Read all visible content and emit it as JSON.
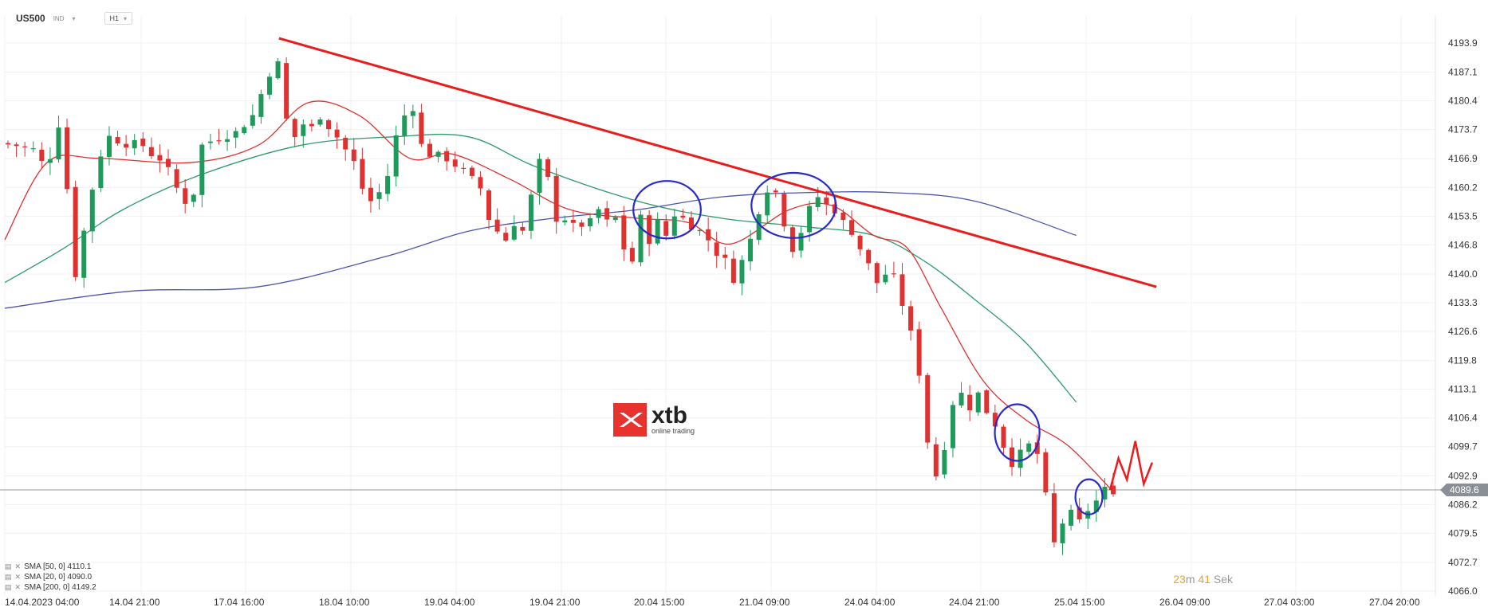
{
  "header": {
    "symbol": "US500",
    "exchange": "IND",
    "timeframe": "H1"
  },
  "logo": {
    "name": "xtb",
    "tagline": "online trading"
  },
  "countdown": {
    "minutes": "23",
    "m_label": "m",
    "seconds": "41",
    "s_label": "Sek"
  },
  "current_price_label": "4089.6",
  "legend": [
    {
      "label": "SMA [50, 0] 4110.1"
    },
    {
      "label": "SMA [20, 0] 4090.0"
    },
    {
      "label": "SMA [200, 0] 4149.2"
    }
  ],
  "colors": {
    "bull": "#1e9a5a",
    "bear": "#e03131",
    "sma20": "#e03131",
    "sma50": "#2e9a6a",
    "sma200": "#4a55a8",
    "trendline": "#ea1c1c",
    "circles": "#2a2acb",
    "price_line": "#9a9a9a",
    "grid": "#eef0f3"
  },
  "chart_data": {
    "type": "candlestick",
    "symbol": "US500",
    "timeframe": "H1",
    "y_ticks": [
      "4193.9",
      "4187.1",
      "4180.4",
      "4173.7",
      "4166.9",
      "4160.2",
      "4153.5",
      "4146.8",
      "4140.0",
      "4133.3",
      "4126.6",
      "4119.8",
      "4113.1",
      "4106.4",
      "4099.7",
      "4092.9",
      "4086.2",
      "4079.5",
      "4072.7",
      "4066.0"
    ],
    "ylim": [
      4066.0,
      4193.9
    ],
    "x_ticks": [
      "14.04.2023  04:00",
      "14.04  21:00",
      "17.04  16:00",
      "18.04  10:00",
      "19.04  04:00",
      "19.04  21:00",
      "20.04  15:00",
      "21.04  09:00",
      "24.04  04:00",
      "24.04  21:00",
      "25.04  15:00",
      "26.04  09:00",
      "27.04  03:00",
      "27.04  20:00"
    ],
    "x_range_bars": [
      0,
      247
    ],
    "current_price": 4089.6,
    "anchors": [
      [
        0,
        4170.5
      ],
      [
        4,
        4170
      ],
      [
        8,
        4169
      ],
      [
        10,
        4166
      ],
      [
        12,
        4167.5
      ],
      [
        14,
        4175
      ],
      [
        16,
        4160
      ],
      [
        18,
        4140
      ],
      [
        20,
        4150
      ],
      [
        22,
        4160
      ],
      [
        24,
        4168
      ],
      [
        26,
        4172
      ],
      [
        30,
        4170.5
      ],
      [
        34,
        4170
      ],
      [
        36,
        4168
      ],
      [
        38,
        4167
      ],
      [
        40,
        4164
      ],
      [
        42,
        4160
      ],
      [
        44,
        4157
      ],
      [
        46,
        4159
      ],
      [
        48,
        4170
      ],
      [
        52,
        4172
      ],
      [
        56,
        4173
      ],
      [
        60,
        4177
      ],
      [
        62,
        4182
      ],
      [
        64,
        4187
      ],
      [
        66,
        4189
      ],
      [
        68,
        4176
      ],
      [
        70,
        4172
      ],
      [
        72,
        4175
      ],
      [
        74,
        4174
      ],
      [
        76,
        4177
      ],
      [
        80,
        4172
      ],
      [
        84,
        4166
      ],
      [
        86,
        4160
      ],
      [
        88,
        4157
      ],
      [
        90,
        4159
      ],
      [
        92,
        4163
      ],
      [
        94,
        4172
      ],
      [
        96,
        4177
      ],
      [
        98,
        4179
      ],
      [
        100,
        4170
      ],
      [
        102,
        4168
      ],
      [
        106,
        4167
      ],
      [
        110,
        4164
      ],
      [
        114,
        4160
      ],
      [
        116,
        4153
      ],
      [
        118,
        4150
      ],
      [
        120,
        4148
      ],
      [
        122,
        4152
      ],
      [
        124,
        4150
      ],
      [
        126,
        4158
      ],
      [
        128,
        4166
      ],
      [
        130,
        4162
      ],
      [
        132,
        4153
      ],
      [
        134,
        4153
      ],
      [
        136,
        4151
      ],
      [
        140,
        4152
      ],
      [
        142,
        4155
      ],
      [
        144,
        4152
      ],
      [
        146,
        4153
      ],
      [
        148,
        4146
      ],
      [
        150,
        4143
      ],
      [
        152,
        4153
      ],
      [
        154,
        4148
      ],
      [
        156,
        4152
      ],
      [
        158,
        4149
      ],
      [
        160,
        4154
      ],
      [
        162,
        4153
      ],
      [
        166,
        4150
      ],
      [
        168,
        4148
      ],
      [
        170,
        4145
      ],
      [
        172,
        4143
      ],
      [
        174,
        4139
      ],
      [
        176,
        4143
      ],
      [
        178,
        4148
      ],
      [
        180,
        4155
      ],
      [
        182,
        4160
      ],
      [
        184,
        4159
      ],
      [
        186,
        4152
      ],
      [
        188,
        4146
      ],
      [
        190,
        4150
      ],
      [
        192,
        4155
      ],
      [
        194,
        4158
      ],
      [
        196,
        4156
      ],
      [
        198,
        4155
      ],
      [
        200,
        4152
      ],
      [
        202,
        4150
      ],
      [
        204,
        4146
      ],
      [
        206,
        4142
      ],
      [
        208,
        4138
      ],
      [
        210,
        4140
      ],
      [
        212,
        4139
      ],
      [
        214,
        4133
      ],
      [
        216,
        4126
      ],
      [
        218,
        4117
      ],
      [
        220,
        4101
      ],
      [
        222,
        4093
      ],
      [
        224,
        4100
      ],
      [
        226,
        4110
      ],
      [
        228,
        4112
      ],
      [
        230,
        4109
      ],
      [
        232,
        4112
      ],
      [
        234,
        4108
      ],
      [
        236,
        4105
      ],
      [
        238,
        4100
      ],
      [
        240,
        4096
      ],
      [
        242,
        4098
      ],
      [
        244,
        4100
      ],
      [
        246,
        4098
      ],
      [
        248,
        4088
      ],
      [
        250,
        4077
      ],
      [
        252,
        4082
      ],
      [
        254,
        4084
      ],
      [
        256,
        4082
      ],
      [
        258,
        4085
      ],
      [
        260,
        4087
      ],
      [
        262,
        4089.6
      ]
    ],
    "projection": [
      [
        262,
        4089.6
      ],
      [
        264,
        4097
      ],
      [
        266,
        4092
      ],
      [
        268,
        4101
      ],
      [
        270,
        4091
      ],
      [
        272,
        4096
      ]
    ],
    "trendline": {
      "start": [
        65,
        4195
      ],
      "end": [
        273,
        4137
      ]
    },
    "series": [
      {
        "name": "SMA [200, 0]",
        "value": 4149.2,
        "points": [
          [
            0,
            4132
          ],
          [
            30,
            4136
          ],
          [
            60,
            4137
          ],
          [
            90,
            4144
          ],
          [
            110,
            4150
          ],
          [
            130,
            4153
          ],
          [
            150,
            4155
          ],
          [
            170,
            4158
          ],
          [
            190,
            4159
          ],
          [
            210,
            4159
          ],
          [
            230,
            4157
          ],
          [
            254,
            4149
          ]
        ]
      },
      {
        "name": "SMA [50, 0]",
        "value": 4110.1,
        "points": [
          [
            0,
            4138
          ],
          [
            14,
            4146
          ],
          [
            28,
            4155
          ],
          [
            46,
            4163
          ],
          [
            70,
            4170
          ],
          [
            92,
            4172
          ],
          [
            110,
            4172
          ],
          [
            126,
            4165
          ],
          [
            150,
            4157
          ],
          [
            170,
            4153
          ],
          [
            190,
            4151
          ],
          [
            206,
            4149
          ],
          [
            218,
            4143
          ],
          [
            230,
            4134
          ],
          [
            242,
            4124
          ],
          [
            254,
            4110.1
          ]
        ]
      },
      {
        "name": "SMA [20, 0]",
        "value": 4090.0,
        "points": [
          [
            0,
            4148
          ],
          [
            10,
            4166
          ],
          [
            22,
            4167
          ],
          [
            44,
            4166
          ],
          [
            60,
            4170
          ],
          [
            72,
            4180
          ],
          [
            84,
            4177
          ],
          [
            96,
            4167
          ],
          [
            106,
            4168
          ],
          [
            120,
            4162
          ],
          [
            134,
            4155
          ],
          [
            150,
            4153
          ],
          [
            162,
            4152
          ],
          [
            172,
            4147
          ],
          [
            186,
            4155
          ],
          [
            196,
            4156
          ],
          [
            206,
            4149
          ],
          [
            214,
            4146
          ],
          [
            222,
            4132
          ],
          [
            232,
            4115
          ],
          [
            242,
            4106
          ],
          [
            252,
            4100
          ],
          [
            262,
            4090
          ]
        ]
      }
    ],
    "annotations": [
      {
        "type": "ellipse",
        "center": [
          157,
          4155
        ],
        "radius_bars": 8,
        "radius_price": 6.7
      },
      {
        "type": "ellipse",
        "center": [
          187,
          4156
        ],
        "radius_bars": 10,
        "radius_price": 7.6
      },
      {
        "type": "ellipse",
        "center": [
          240,
          4103
        ],
        "radius_bars": 5.3,
        "radius_price": 6.6
      },
      {
        "type": "ellipse",
        "center": [
          257,
          4088
        ],
        "radius_bars": 3.2,
        "radius_price": 4.1
      }
    ]
  }
}
